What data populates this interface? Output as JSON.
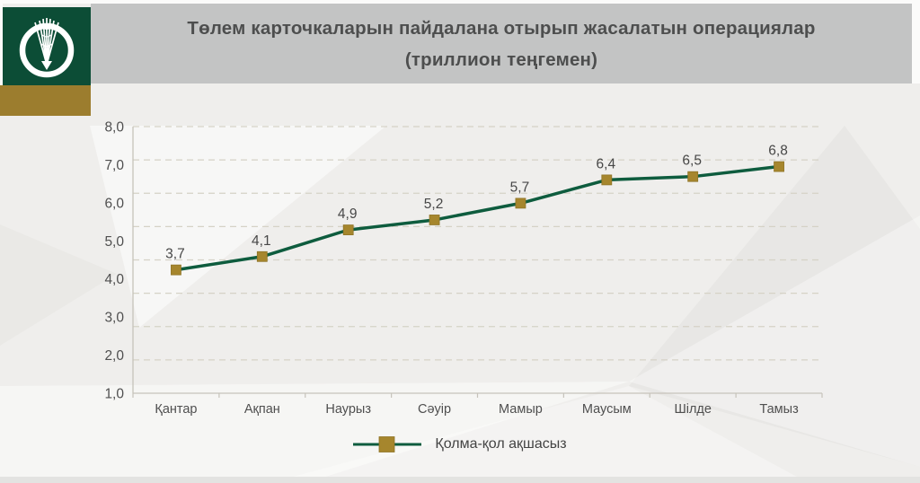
{
  "header": {
    "title_line1": "Төлем карточкаларын пайдалана отырып жасалатын операциялар",
    "title_line2": "(триллион теңгемен)",
    "logo": "national-bank-of-kazakhstan-emblem"
  },
  "chart_data": {
    "type": "line",
    "title": "Төлем карточкаларын пайдалана отырып жасалатын операциялар",
    "subtitle": "(триллион теңгемен)",
    "categories": [
      "Қантар",
      "Ақпан",
      "Наурыз",
      "Сәуір",
      "Мамыр",
      "Маусым",
      "Шілде",
      "Тамыз"
    ],
    "series": [
      {
        "name": "Қолма-қол ақшасыз",
        "values": [
          3.7,
          4.1,
          4.9,
          5.2,
          5.7,
          6.4,
          6.5,
          6.8
        ],
        "value_labels": [
          "3,7",
          "4,1",
          "4,9",
          "5,2",
          "5,7",
          "6,4",
          "6,5",
          "6,8"
        ]
      }
    ],
    "y_axis_labels": [
      "8,0",
      "7,0",
      "6,0",
      "5,0",
      "4,0",
      "3,0",
      "2,0",
      "1,0"
    ],
    "ylim": [
      0,
      8
    ],
    "grid": "horizontal-dashed",
    "legend_position": "bottom",
    "marker_shape": "square",
    "colors": {
      "line": "#0e5c3e",
      "marker": "#a6862d",
      "marker_border": "#8f7426",
      "grid": "#d5d2c6",
      "axis": "#c6c3ba",
      "tick_text": "#4f4f4f",
      "value_text": "#474747"
    }
  },
  "legend": {
    "label": "Қолма-қол ақшасыз"
  },
  "branding": {
    "logo_green": "#0c4d36",
    "gold_bar": "#9c7d2e",
    "header_gray": "#c3c4c4",
    "title_text": "#4d4e4e"
  }
}
